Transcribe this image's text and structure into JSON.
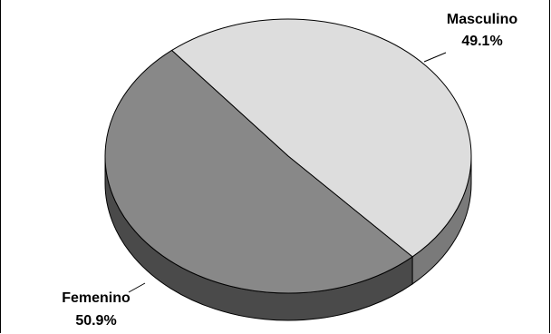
{
  "chart_data": {
    "type": "pie",
    "style": "3d",
    "categories": [
      "Masculino",
      "Femenino"
    ],
    "values": [
      49.1,
      50.9
    ],
    "value_labels": [
      "49.1%",
      "50.9%"
    ],
    "colors": {
      "Masculino": "#dddddd",
      "Femenino": "#888888",
      "Femenino_side": "#4a4a4a",
      "Masculino_side": "#7a7a7a",
      "outline": "#000000"
    },
    "legend": "none",
    "title": ""
  }
}
